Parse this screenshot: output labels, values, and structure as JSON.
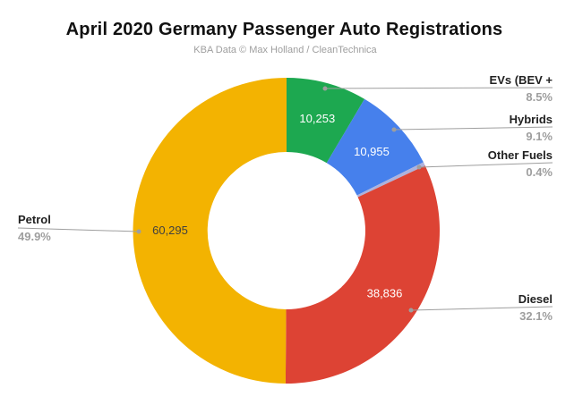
{
  "chart_data": {
    "type": "pie",
    "donut": true,
    "title": "April 2020 Germany Passenger Auto Registrations",
    "subtitle": "KBA Data © Max Holland / CleanTechnica",
    "legend_position": "none",
    "slices": [
      {
        "label": "EVs (BEV +",
        "percent": 8.5,
        "percent_label": "8.5%",
        "value": 10253,
        "value_label": "10,253",
        "color": "#1DA850",
        "value_text_color": "#ffffff"
      },
      {
        "label": "Hybrids",
        "percent": 9.1,
        "percent_label": "9.1%",
        "value": 10955,
        "value_label": "10,955",
        "color": "#4680EC",
        "value_text_color": "#ffffff"
      },
      {
        "label": "Other Fuels",
        "percent": 0.4,
        "percent_label": "0.4%",
        "value": null,
        "value_label": "",
        "color": "#ADB2DC",
        "value_text_color": "#ffffff"
      },
      {
        "label": "Diesel",
        "percent": 32.1,
        "percent_label": "32.1%",
        "value": 38836,
        "value_label": "38,836",
        "color": "#DD4334",
        "value_text_color": "#ffffff"
      },
      {
        "label": "Petrol",
        "percent": 49.9,
        "percent_label": "49.9%",
        "value": 60295,
        "value_label": "60,295",
        "color": "#F3B301",
        "value_text_color": "#404040"
      }
    ]
  }
}
